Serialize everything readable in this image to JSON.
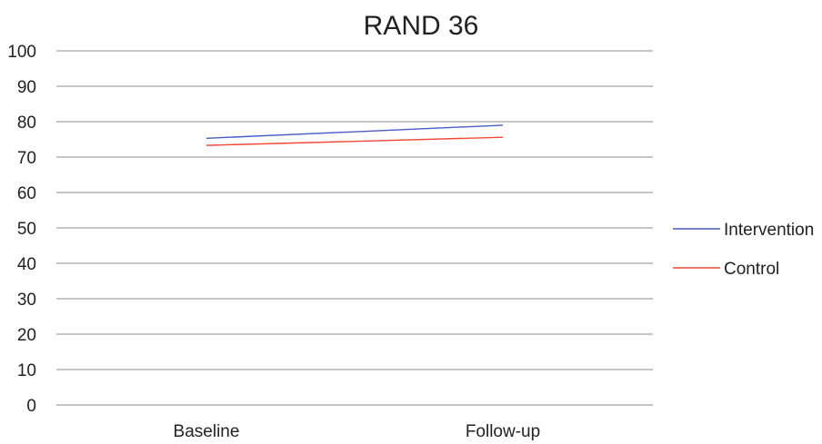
{
  "chart_data": {
    "type": "line",
    "title": "RAND 36",
    "xlabel": "",
    "ylabel": "",
    "categories": [
      "Baseline",
      "Follow-up"
    ],
    "ylim": [
      0,
      100
    ],
    "yticks": [
      0,
      10,
      20,
      30,
      40,
      50,
      60,
      70,
      80,
      90,
      100
    ],
    "grid": true,
    "legend_position": "right",
    "series": [
      {
        "name": "Intervention",
        "values": [
          75.3,
          79.0
        ],
        "color": "#4a5bc4"
      },
      {
        "name": "Control",
        "values": [
          73.3,
          75.6
        ],
        "color": "#f0493a"
      }
    ]
  }
}
